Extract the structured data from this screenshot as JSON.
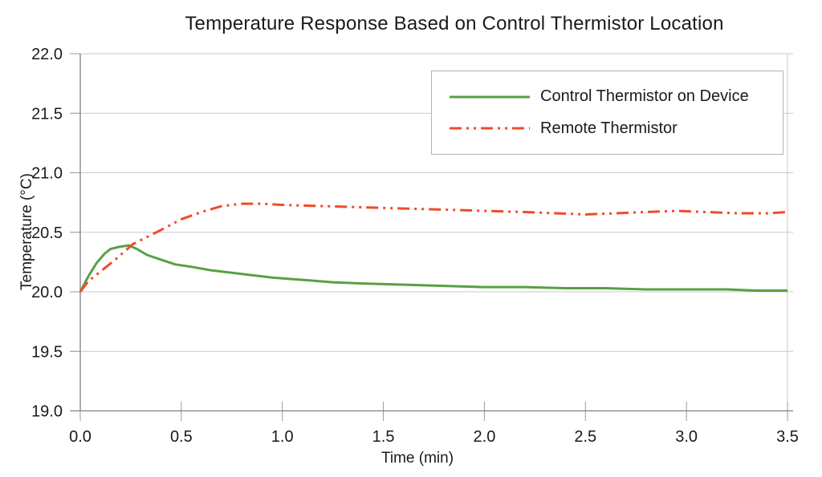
{
  "title": "Temperature Response Based on Control Thermistor Location",
  "chart_data": {
    "type": "line",
    "title": "Temperature Response Based on Control Thermistor Location",
    "xlabel": "Time (min)",
    "ylabel": "Temperature (°C)",
    "xlim": [
      0.0,
      3.5
    ],
    "ylim": [
      19.0,
      22.0
    ],
    "x_ticks": [
      "0.0",
      "0.5",
      "1.0",
      "1.5",
      "2.0",
      "2.5",
      "3.0",
      "3.5"
    ],
    "y_ticks": [
      "19.0",
      "19.5",
      "20.0",
      "20.5",
      "21.0",
      "21.5",
      "22.0"
    ],
    "grid": "horizontal",
    "legend_position": "inside-top-right",
    "series": [
      {
        "name": "Control Thermistor on Device",
        "color": "#58a044",
        "style": "solid",
        "points": [
          [
            0.0,
            20.0
          ],
          [
            0.04,
            20.13
          ],
          [
            0.08,
            20.24
          ],
          [
            0.12,
            20.32
          ],
          [
            0.15,
            20.36
          ],
          [
            0.2,
            20.38
          ],
          [
            0.24,
            20.39
          ],
          [
            0.28,
            20.36
          ],
          [
            0.33,
            20.31
          ],
          [
            0.4,
            20.27
          ],
          [
            0.47,
            20.23
          ],
          [
            0.55,
            20.21
          ],
          [
            0.65,
            20.18
          ],
          [
            0.75,
            20.16
          ],
          [
            0.85,
            20.14
          ],
          [
            0.95,
            20.12
          ],
          [
            1.1,
            20.1
          ],
          [
            1.25,
            20.08
          ],
          [
            1.4,
            20.07
          ],
          [
            1.6,
            20.06
          ],
          [
            1.8,
            20.05
          ],
          [
            2.0,
            20.04
          ],
          [
            2.2,
            20.04
          ],
          [
            2.4,
            20.03
          ],
          [
            2.6,
            20.03
          ],
          [
            2.8,
            20.02
          ],
          [
            3.0,
            20.02
          ],
          [
            3.2,
            20.02
          ],
          [
            3.35,
            20.01
          ],
          [
            3.5,
            20.01
          ]
        ]
      },
      {
        "name": "Remote Thermistor",
        "color": "#f04b28",
        "style": "dash-dot-dot",
        "points": [
          [
            0.0,
            20.0
          ],
          [
            0.04,
            20.09
          ],
          [
            0.1,
            20.17
          ],
          [
            0.18,
            20.28
          ],
          [
            0.26,
            20.4
          ],
          [
            0.33,
            20.46
          ],
          [
            0.4,
            20.52
          ],
          [
            0.5,
            20.61
          ],
          [
            0.6,
            20.67
          ],
          [
            0.7,
            20.72
          ],
          [
            0.8,
            20.74
          ],
          [
            0.9,
            20.74
          ],
          [
            1.0,
            20.73
          ],
          [
            1.2,
            20.72
          ],
          [
            1.4,
            20.71
          ],
          [
            1.6,
            20.7
          ],
          [
            1.8,
            20.69
          ],
          [
            2.0,
            20.68
          ],
          [
            2.2,
            20.67
          ],
          [
            2.35,
            20.66
          ],
          [
            2.5,
            20.65
          ],
          [
            2.65,
            20.66
          ],
          [
            2.8,
            20.67
          ],
          [
            2.95,
            20.68
          ],
          [
            3.1,
            20.67
          ],
          [
            3.25,
            20.66
          ],
          [
            3.4,
            20.66
          ],
          [
            3.5,
            20.67
          ]
        ]
      }
    ]
  },
  "colors": {
    "gridline": "#c9c9c9",
    "axis": "#808080",
    "tick": "#9a9a9a",
    "text": "#1a1a1a",
    "legend_border": "#b4b4b4"
  }
}
